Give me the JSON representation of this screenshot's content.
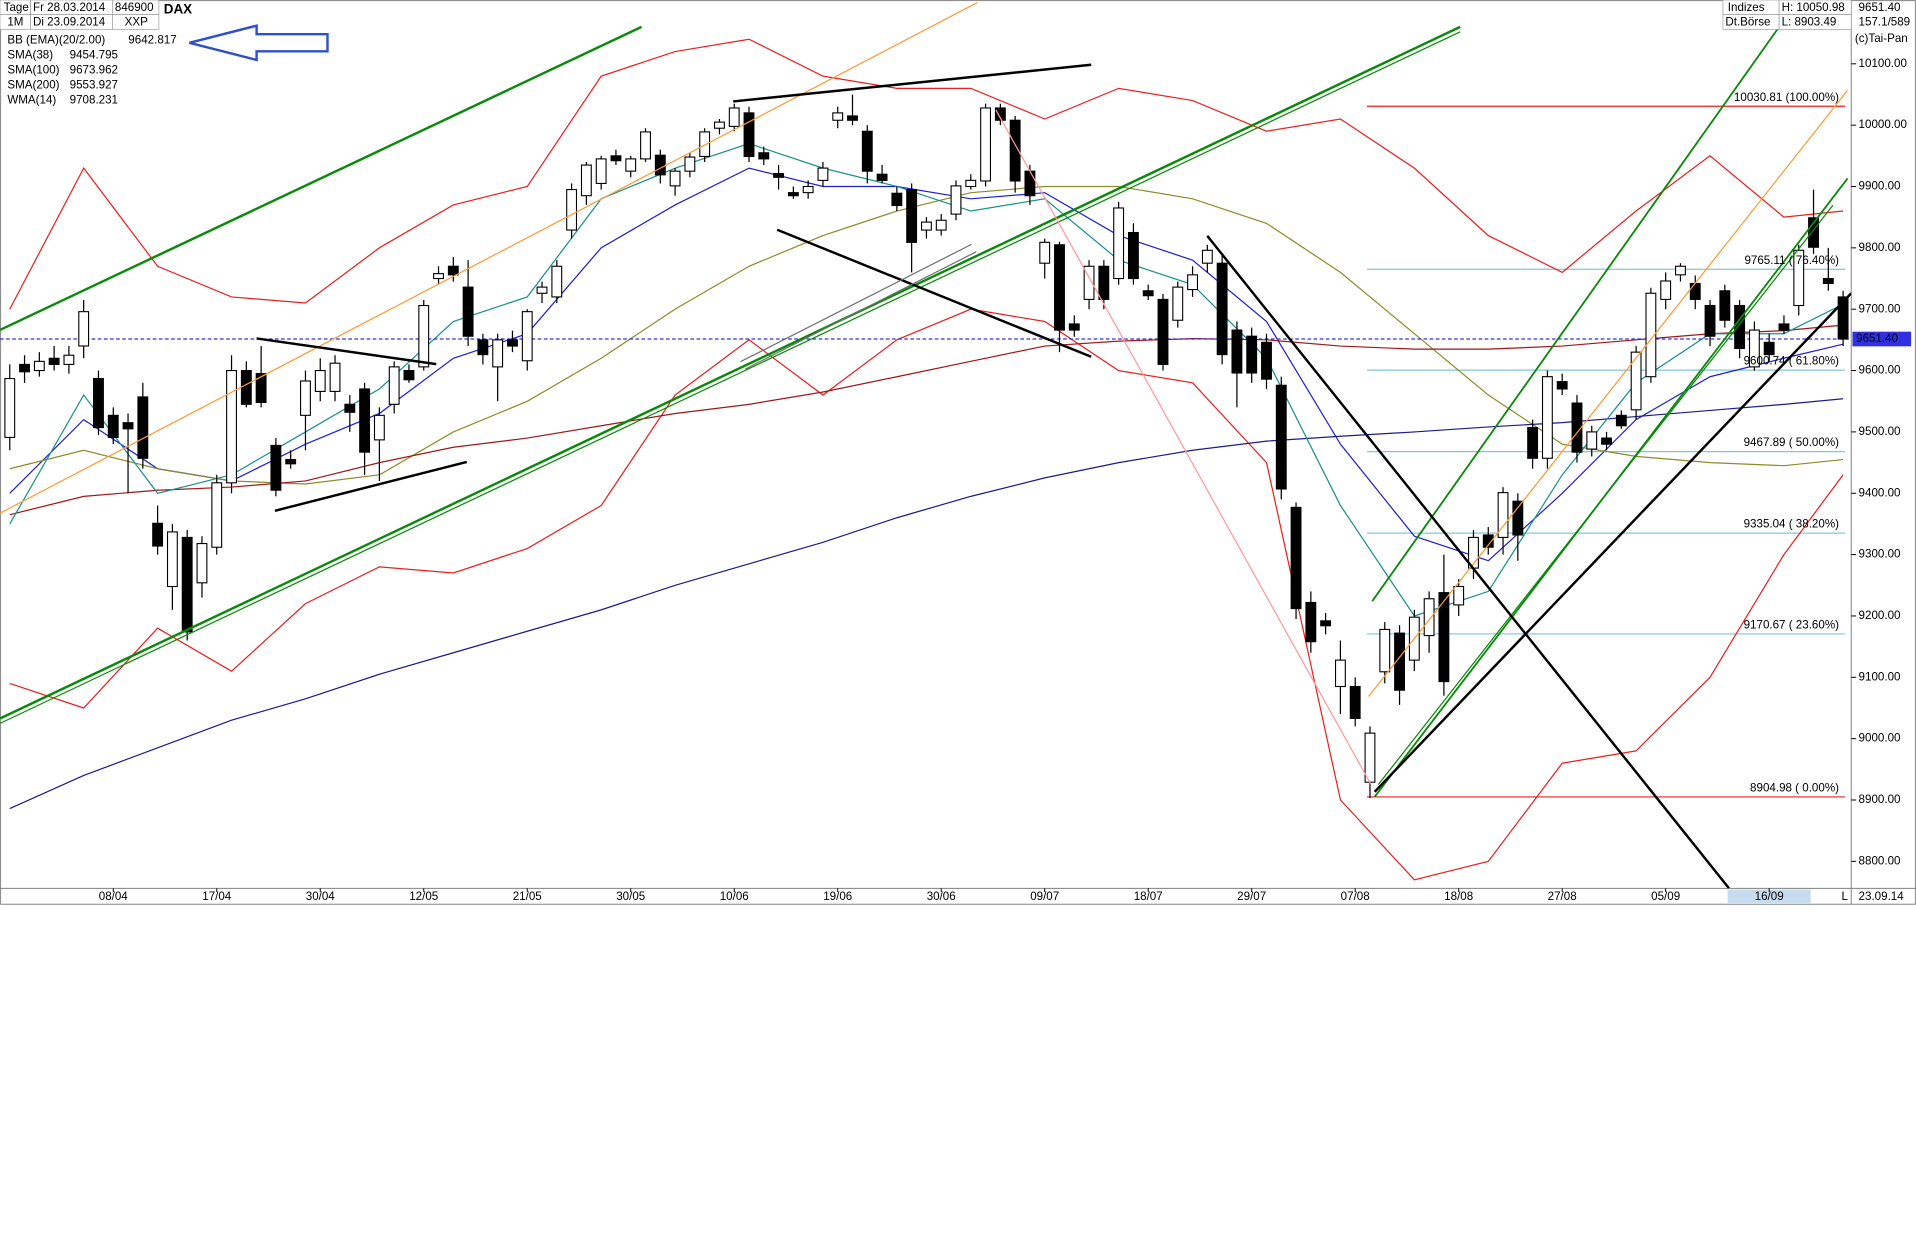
{
  "header": {
    "left": [
      [
        "Tage",
        "Fr 28.03.2014",
        "846900"
      ],
      [
        "1M",
        "Di 23.09.2014",
        "XXP"
      ]
    ],
    "symbol": "DAX",
    "right": [
      [
        "Indizes",
        "H: 10050.98",
        "9651.40"
      ],
      [
        "Dt.Börse",
        "L: 8903.49",
        "157.1/589"
      ]
    ],
    "copyright": "(c)Tai-Pan"
  },
  "chart_data": {
    "type": "candlestick",
    "ylim": [
      8756,
      10204
    ],
    "xlim": [
      -0.66,
      124.55
    ],
    "yticks": [
      {
        "value": 8800,
        "label": "8800.00"
      },
      {
        "value": 8900,
        "label": "8900.00"
      },
      {
        "value": 9000,
        "label": "9000.00"
      },
      {
        "value": 9100,
        "label": "9100.00"
      },
      {
        "value": 9200,
        "label": "9200.00"
      },
      {
        "value": 9300,
        "label": "9300.00"
      },
      {
        "value": 9400,
        "label": "9400.00"
      },
      {
        "value": 9500,
        "label": "9500.00"
      },
      {
        "value": 9600,
        "label": "9600.00"
      },
      {
        "value": 9700,
        "label": "9700.00"
      },
      {
        "value": 9800,
        "label": "9800.00"
      },
      {
        "value": 9900,
        "label": "9900.00"
      },
      {
        "value": 10000,
        "label": "10000.00"
      },
      {
        "value": 10100,
        "label": "10100.00"
      }
    ],
    "xticks": [
      {
        "value": 7,
        "label": "08/04"
      },
      {
        "value": 14,
        "label": "17/04"
      },
      {
        "value": 21,
        "label": "30/04"
      },
      {
        "value": 28,
        "label": "12/05"
      },
      {
        "value": 35,
        "label": "21/05"
      },
      {
        "value": 42,
        "label": "30/05"
      },
      {
        "value": 49,
        "label": "10/06"
      },
      {
        "value": 56,
        "label": "19/06"
      },
      {
        "value": 63,
        "label": "30/06"
      },
      {
        "value": 70,
        "label": "09/07"
      },
      {
        "value": 77,
        "label": "18/07"
      },
      {
        "value": 84,
        "label": "29/07"
      },
      {
        "value": 91,
        "label": "07/08"
      },
      {
        "value": 98,
        "label": "18/08"
      },
      {
        "value": 105,
        "label": "27/08"
      },
      {
        "value": 112,
        "label": "05/09"
      },
      {
        "value": 119,
        "label": "16/09"
      }
    ],
    "highlight_xtick": 16,
    "end_date": "23.09.14",
    "corner_label": "L",
    "ohlc": [
      [
        9491,
        9610,
        9470,
        9587
      ],
      [
        9610,
        9625,
        9580,
        9598
      ],
      [
        9600,
        9630,
        9590,
        9615
      ],
      [
        9620,
        9640,
        9600,
        9610
      ],
      [
        9610,
        9640,
        9595,
        9625
      ],
      [
        9640,
        9715,
        9620,
        9696
      ],
      [
        9587,
        9600,
        9495,
        9507
      ],
      [
        9527,
        9540,
        9480,
        9491
      ],
      [
        9515,
        9530,
        9400,
        9505
      ],
      [
        9557,
        9580,
        9440,
        9457
      ],
      [
        9351,
        9380,
        9300,
        9314
      ],
      [
        9248,
        9350,
        9210,
        9337
      ],
      [
        9328,
        9340,
        9160,
        9174
      ],
      [
        9254,
        9330,
        9230,
        9318
      ],
      [
        9312,
        9430,
        9300,
        9417
      ],
      [
        9417,
        9625,
        9400,
        9600
      ],
      [
        9600,
        9615,
        9540,
        9545
      ],
      [
        9595,
        9640,
        9540,
        9548
      ],
      [
        9478,
        9490,
        9395,
        9405
      ],
      [
        9455,
        9470,
        9440,
        9448
      ],
      [
        9527,
        9600,
        9470,
        9583
      ],
      [
        9566,
        9620,
        9550,
        9600
      ],
      [
        9566,
        9625,
        9550,
        9612
      ],
      [
        9545,
        9560,
        9500,
        9532
      ],
      [
        9570,
        9580,
        9430,
        9467
      ],
      [
        9487,
        9540,
        9420,
        9527
      ],
      [
        9545,
        9615,
        9530,
        9606
      ],
      [
        9600,
        9610,
        9580,
        9585
      ],
      [
        9606,
        9715,
        9600,
        9706
      ],
      [
        9750,
        9770,
        9740,
        9758
      ],
      [
        9770,
        9785,
        9745,
        9756
      ],
      [
        9736,
        9780,
        9640,
        9656
      ],
      [
        9650,
        9660,
        9610,
        9626
      ],
      [
        9606,
        9660,
        9550,
        9650
      ],
      [
        9650,
        9665,
        9630,
        9640
      ],
      [
        9616,
        9700,
        9600,
        9696
      ],
      [
        9726,
        9745,
        9710,
        9736
      ],
      [
        9720,
        9780,
        9710,
        9770
      ],
      [
        9829,
        9905,
        9815,
        9895
      ],
      [
        9885,
        9940,
        9870,
        9935
      ],
      [
        9905,
        9950,
        9895,
        9945
      ],
      [
        9950,
        9960,
        9935,
        9942
      ],
      [
        9925,
        9950,
        9915,
        9945
      ],
      [
        9945,
        9995,
        9940,
        9989
      ],
      [
        9951,
        9960,
        9905,
        9919
      ],
      [
        9901,
        9930,
        9885,
        9925
      ],
      [
        9925,
        9955,
        9915,
        9948
      ],
      [
        9949,
        9995,
        9940,
        9989
      ],
      [
        9995,
        10010,
        9985,
        10005
      ],
      [
        9998,
        10035,
        9990,
        10028
      ],
      [
        10020,
        10030,
        9940,
        9949
      ],
      [
        9955,
        9965,
        9935,
        9945
      ],
      [
        9921,
        9935,
        9895,
        9915
      ],
      [
        9890,
        9900,
        9880,
        9885
      ],
      [
        9890,
        9910,
        9880,
        9900
      ],
      [
        9910,
        9940,
        9900,
        9930
      ],
      [
        10008,
        10030,
        9995,
        10020
      ],
      [
        10015,
        10050,
        10000,
        10008
      ],
      [
        9990,
        10000,
        9905,
        9925
      ],
      [
        9920,
        9935,
        9905,
        9910
      ],
      [
        9889,
        9900,
        9860,
        9869
      ],
      [
        9895,
        9905,
        9760,
        9809
      ],
      [
        9829,
        9850,
        9815,
        9842
      ],
      [
        9829,
        9855,
        9820,
        9845
      ],
      [
        9855,
        9910,
        9845,
        9901
      ],
      [
        9900,
        9920,
        9895,
        9910
      ],
      [
        9909,
        10035,
        9900,
        10028
      ],
      [
        10028,
        10035,
        10000,
        10008
      ],
      [
        10008,
        10015,
        9890,
        9909
      ],
      [
        9925,
        9935,
        9870,
        9885
      ],
      [
        9775,
        9815,
        9750,
        9809
      ],
      [
        9805,
        9810,
        9630,
        9666
      ],
      [
        9676,
        9690,
        9655,
        9666
      ],
      [
        9716,
        9780,
        9700,
        9770
      ],
      [
        9770,
        9780,
        9700,
        9716
      ],
      [
        9750,
        9875,
        9740,
        9865
      ],
      [
        9825,
        9840,
        9740,
        9750
      ],
      [
        9730,
        9740,
        9715,
        9722
      ],
      [
        9716,
        9725,
        9600,
        9610
      ],
      [
        9682,
        9745,
        9670,
        9736
      ],
      [
        9732,
        9770,
        9720,
        9756
      ],
      [
        9775,
        9805,
        9760,
        9796
      ],
      [
        9775,
        9790,
        9610,
        9626
      ],
      [
        9666,
        9680,
        9540,
        9596
      ],
      [
        9656,
        9670,
        9580,
        9596
      ],
      [
        9646,
        9660,
        9570,
        9586
      ],
      [
        9576,
        9590,
        9390,
        9407
      ],
      [
        9377,
        9385,
        9195,
        9212
      ],
      [
        9222,
        9240,
        9140,
        9158
      ],
      [
        9192,
        9205,
        9170,
        9184
      ],
      [
        9085,
        9160,
        9040,
        9128
      ],
      [
        9085,
        9100,
        9020,
        9033
      ],
      [
        8929,
        9020,
        8903,
        9009
      ],
      [
        9109,
        9190,
        9090,
        9178
      ],
      [
        9172,
        9185,
        9055,
        9079
      ],
      [
        9128,
        9210,
        9110,
        9198
      ],
      [
        9168,
        9240,
        9140,
        9228
      ],
      [
        9238,
        9300,
        9070,
        9093
      ],
      [
        9218,
        9260,
        9200,
        9248
      ],
      [
        9278,
        9340,
        9260,
        9328
      ],
      [
        9332,
        9345,
        9300,
        9312
      ],
      [
        9328,
        9410,
        9300,
        9401
      ],
      [
        9387,
        9400,
        9290,
        9332
      ],
      [
        9507,
        9520,
        9440,
        9457
      ],
      [
        9457,
        9600,
        9440,
        9590
      ],
      [
        9582,
        9595,
        9560,
        9570
      ],
      [
        9547,
        9560,
        9450,
        9467
      ],
      [
        9472,
        9510,
        9460,
        9500
      ],
      [
        9490,
        9500,
        9470,
        9480
      ],
      [
        9527,
        9535,
        9505,
        9510
      ],
      [
        9536,
        9640,
        9520,
        9630
      ],
      [
        9590,
        9735,
        9580,
        9726
      ],
      [
        9716,
        9760,
        9700,
        9746
      ],
      [
        9756,
        9775,
        9745,
        9770
      ],
      [
        9742,
        9755,
        9700,
        9716
      ],
      [
        9706,
        9715,
        9640,
        9656
      ],
      [
        9730,
        9740,
        9670,
        9682
      ],
      [
        9706,
        9715,
        9620,
        9636
      ],
      [
        9606,
        9680,
        9600,
        9666
      ],
      [
        9646,
        9660,
        9615,
        9626
      ],
      [
        9676,
        9690,
        9660,
        9666
      ],
      [
        9706,
        9805,
        9690,
        9796
      ],
      [
        9849,
        9895,
        9790,
        9801
      ],
      [
        9750,
        9800,
        9730,
        9742
      ],
      [
        9720,
        9730,
        9640,
        9651.4
      ]
    ],
    "overlay_x": [
      0,
      5,
      10,
      15,
      20,
      25,
      30,
      35,
      40,
      45,
      50,
      55,
      60,
      65,
      70,
      75,
      80,
      85,
      90,
      95,
      100,
      105,
      110,
      115,
      120,
      124
    ],
    "series": [
      {
        "name": "BB (EMA)(20/2.00)",
        "color": "#2020d0",
        "legend_value": 9642.817,
        "band_color": "#e82020",
        "values": [
          9400,
          9520,
          9440,
          9420,
          9480,
          9530,
          9620,
          9660,
          9800,
          9870,
          9930,
          9900,
          9900,
          9880,
          9890,
          9820,
          9780,
          9680,
          9480,
          9330,
          9290,
          9400,
          9520,
          9590,
          9620,
          9643
        ],
        "upper": [
          9700,
          9930,
          9770,
          9720,
          9710,
          9800,
          9870,
          9900,
          10080,
          10120,
          10140,
          10080,
          10060,
          10060,
          10010,
          10060,
          10040,
          9990,
          10010,
          9930,
          9820,
          9760,
          9860,
          9950,
          9850,
          9860
        ],
        "lower": [
          9090,
          9050,
          9180,
          9110,
          9220,
          9280,
          9270,
          9310,
          9380,
          9560,
          9650,
          9560,
          9650,
          9700,
          9680,
          9600,
          9580,
          9450,
          8900,
          8770,
          8800,
          8960,
          8980,
          9100,
          9300,
          9430
        ]
      },
      {
        "name": "SMA(38)",
        "color": "#8c8c28",
        "legend_value": 9454.795,
        "values": [
          9440,
          9470,
          9440,
          9420,
          9415,
          9430,
          9500,
          9550,
          9620,
          9700,
          9770,
          9820,
          9860,
          9890,
          9900,
          9900,
          9880,
          9840,
          9760,
          9660,
          9560,
          9480,
          9460,
          9450,
          9445,
          9455
        ]
      },
      {
        "name": "SMA(100)",
        "color": "#a01818",
        "legend_value": 9673.962,
        "values": [
          9365,
          9395,
          9405,
          9410,
          9420,
          9450,
          9475,
          9490,
          9510,
          9530,
          9545,
          9565,
          9590,
          9615,
          9640,
          9648,
          9652,
          9650,
          9640,
          9635,
          9635,
          9640,
          9650,
          9660,
          9665,
          9674
        ]
      },
      {
        "name": "SMA(200)",
        "color": "#1c1c8c",
        "legend_value": 9553.927,
        "values": [
          8886,
          8940,
          8985,
          9030,
          9065,
          9105,
          9140,
          9175,
          9210,
          9250,
          9285,
          9320,
          9360,
          9395,
          9425,
          9450,
          9470,
          9485,
          9493,
          9500,
          9508,
          9515,
          9525,
          9535,
          9545,
          9554
        ]
      },
      {
        "name": "WMA(14)",
        "color": "#1a9090",
        "legend_value": 9708.231,
        "values": [
          9350,
          9560,
          9400,
          9430,
          9500,
          9570,
          9680,
          9720,
          9880,
          9930,
          9970,
          9930,
          9900,
          9860,
          9880,
          9780,
          9740,
          9620,
          9380,
          9200,
          9240,
          9430,
          9580,
          9660,
          9660,
          9708
        ]
      }
    ],
    "fib_levels": [
      {
        "value": 10030.81,
        "label": "10030.81 (100.00%)",
        "color": "#e82020"
      },
      {
        "value": 9765.11,
        "label": "9765.11 ( 76.40%)",
        "color": "#80c8d8"
      },
      {
        "value": 9600.74,
        "label": "9600.74 ( 61.80%)",
        "color": "#80c8d8"
      },
      {
        "value": 9467.89,
        "label": "9467.89 ( 50.00%)",
        "color": "#80c8d8"
      },
      {
        "value": 9335.04,
        "label": "9335.04 ( 38.20%)",
        "color": "#80c8d8"
      },
      {
        "value": 9170.67,
        "label": "9170.67 ( 23.60%)",
        "color": "#80c8d8"
      },
      {
        "value": 8904.98,
        "label": "8904.98 (  0.00%)",
        "color": "#e82020"
      }
    ],
    "last_price": {
      "value": 9651.4,
      "label": "9651.40",
      "color": "#3030e0"
    }
  }
}
